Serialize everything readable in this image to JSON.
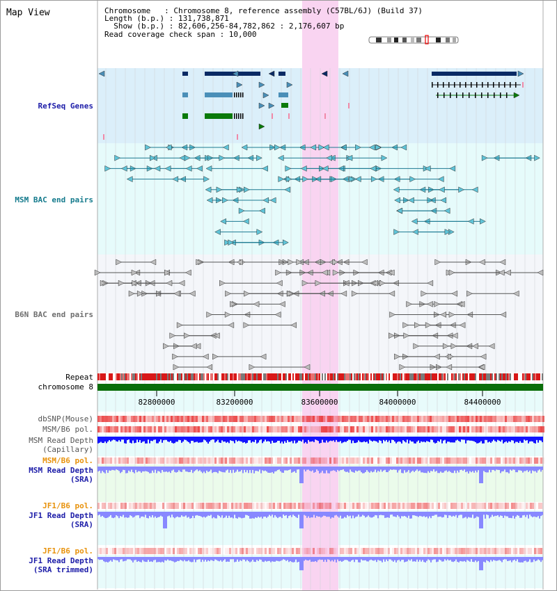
{
  "title": "Map View",
  "header": {
    "chromosome_line": "Chromosome   : Chromosome 8, reference assembly (C57BL/6J) (Build 37)",
    "length_line": "Length (b.p.) : 131,738,871",
    "show_line": "  Show (b.p.) : 82,606,256-84,782,862 : 2,176,607 bp",
    "coverage_line": "Read coverage check span : 10,000"
  },
  "tracks": {
    "refseq": "RefSeq Genes",
    "msm_bac": "MSM BAC end pairs",
    "b6n_bac": "B6N BAC end pairs",
    "repeat": "Repeat",
    "chromosome": "chromosome 8",
    "dbsnp": "dbSNP(Mouse)",
    "msm_b6_pol": "MSM/B6 pol.",
    "msm_depth_cap_1": "MSM Read Depth",
    "msm_depth_cap_2": "(Capillary)",
    "msm_b6_pol2": "MSM/B6 pol.",
    "msm_depth_sra_1": "MSM Read Depth",
    "msm_depth_sra_2": "(SRA)",
    "jf1_b6_pol": "JF1/B6 pol.",
    "jf1_depth_1": "JF1 Read Depth",
    "jf1_depth_2": "(SRA)",
    "jf1_b6_pol2": "JF1/B6 pol.",
    "jf1_trim_1": "JF1 Read Depth",
    "jf1_trim_2": "(SRA trimmed)"
  },
  "axis": {
    "ticks": [
      "82800000",
      "83200000",
      "83600000",
      "84000000",
      "84400000"
    ]
  },
  "colors": {
    "highlight": "#f9d4f1",
    "refseq_bg": "#dbeffa",
    "bac_bg": "#e6fbfb",
    "b6n_bg": "#f4f6fa",
    "chromosome": "#0a6e0a",
    "navy": "#0a2a64",
    "steel": "#4a8fb8",
    "green": "#0a7a0a",
    "depth_dark": "#1414ff",
    "depth_light": "#8888ff"
  }
}
